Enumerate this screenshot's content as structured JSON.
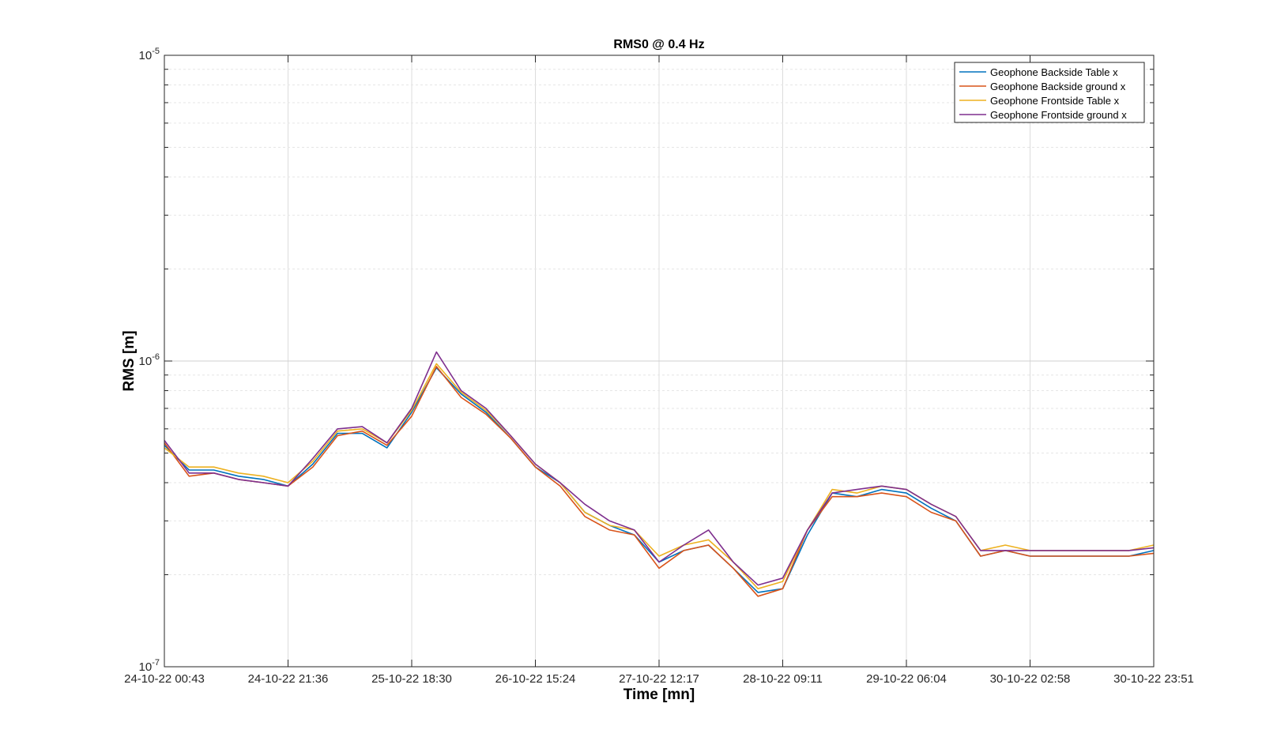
{
  "chart_data": {
    "type": "line",
    "title": "RMS0 @ 0.4 Hz",
    "xlabel": "Time [mn]",
    "ylabel": "RMS [m]",
    "yscale": "log",
    "ylim": [
      1e-07,
      1e-05
    ],
    "grid": true,
    "legend_position": "top-right",
    "x_tick_labels": [
      "24-10-22 00:43",
      "24-10-22 21:36",
      "25-10-22 18:30",
      "26-10-22 15:24",
      "27-10-22 12:17",
      "28-10-22 09:11",
      "29-10-22 06:04",
      "30-10-22 02:58",
      "30-10-22 23:51"
    ],
    "y_ticks": [
      {
        "value": 1e-07,
        "base": "10",
        "exp": "-7"
      },
      {
        "value": 1e-06,
        "base": "10",
        "exp": "-6"
      },
      {
        "value": 1e-05,
        "base": "10",
        "exp": "-5"
      }
    ],
    "x_unit_note": "x values are hours since 24-10-22 00:43",
    "series": [
      {
        "name": "Geophone Backside Table x",
        "color": "#0072BD",
        "x": [
          0,
          4,
          8,
          12,
          16,
          20,
          24,
          28,
          32,
          36,
          40,
          44,
          48,
          52,
          56,
          60,
          64,
          68,
          72,
          76,
          80,
          84,
          88,
          92,
          96,
          100,
          104,
          108,
          112,
          116,
          120,
          124,
          128,
          132,
          136,
          140,
          144,
          148,
          152,
          156,
          160
        ],
        "y": [
          5.3e-07,
          4.4e-07,
          4.4e-07,
          4.2e-07,
          4.1e-07,
          3.9e-07,
          4.6e-07,
          5.8e-07,
          5.8e-07,
          5.2e-07,
          6.8e-07,
          9.5e-07,
          7.8e-07,
          6.8e-07,
          5.6e-07,
          4.5e-07,
          4e-07,
          3.2e-07,
          2.9e-07,
          2.7e-07,
          2.2e-07,
          2.4e-07,
          2.5e-07,
          2.1e-07,
          1.75e-07,
          1.8e-07,
          2.7e-07,
          3.7e-07,
          3.6e-07,
          3.8e-07,
          3.7e-07,
          3.3e-07,
          3e-07,
          2.3e-07,
          2.4e-07,
          2.3e-07,
          2.3e-07,
          2.3e-07,
          2.3e-07,
          2.3e-07,
          2.4e-07
        ]
      },
      {
        "name": "Geophone Backside ground x",
        "color": "#D95319",
        "x": [
          0,
          4,
          8,
          12,
          16,
          20,
          24,
          28,
          32,
          36,
          40,
          44,
          48,
          52,
          56,
          60,
          64,
          68,
          72,
          76,
          80,
          84,
          88,
          92,
          96,
          100,
          104,
          108,
          112,
          116,
          120,
          124,
          128,
          132,
          136,
          140,
          144,
          148,
          152,
          156,
          160
        ],
        "y": [
          5.4e-07,
          4.2e-07,
          4.3e-07,
          4.1e-07,
          4e-07,
          3.9e-07,
          4.5e-07,
          5.7e-07,
          5.9e-07,
          5.3e-07,
          6.6e-07,
          9.6e-07,
          7.6e-07,
          6.7e-07,
          5.6e-07,
          4.5e-07,
          3.9e-07,
          3.1e-07,
          2.8e-07,
          2.7e-07,
          2.1e-07,
          2.4e-07,
          2.5e-07,
          2.1e-07,
          1.7e-07,
          1.8e-07,
          2.8e-07,
          3.6e-07,
          3.6e-07,
          3.7e-07,
          3.6e-07,
          3.2e-07,
          3e-07,
          2.3e-07,
          2.4e-07,
          2.3e-07,
          2.3e-07,
          2.3e-07,
          2.3e-07,
          2.3e-07,
          2.35e-07
        ]
      },
      {
        "name": "Geophone Frontside Table x",
        "color": "#EDB120",
        "x": [
          0,
          4,
          8,
          12,
          16,
          20,
          24,
          28,
          32,
          36,
          40,
          44,
          48,
          52,
          56,
          60,
          64,
          68,
          72,
          76,
          80,
          84,
          88,
          92,
          96,
          100,
          104,
          108,
          112,
          116,
          120,
          124,
          128,
          132,
          136,
          140,
          144,
          148,
          152,
          156,
          160
        ],
        "y": [
          5.2e-07,
          4.5e-07,
          4.5e-07,
          4.3e-07,
          4.2e-07,
          4e-07,
          4.7e-07,
          5.9e-07,
          6e-07,
          5.4e-07,
          6.9e-07,
          9.8e-07,
          7.9e-07,
          6.9e-07,
          5.7e-07,
          4.6e-07,
          4e-07,
          3.2e-07,
          2.9e-07,
          2.8e-07,
          2.3e-07,
          2.5e-07,
          2.6e-07,
          2.2e-07,
          1.8e-07,
          1.9e-07,
          2.8e-07,
          3.8e-07,
          3.7e-07,
          3.9e-07,
          3.8e-07,
          3.4e-07,
          3.1e-07,
          2.4e-07,
          2.5e-07,
          2.4e-07,
          2.4e-07,
          2.4e-07,
          2.4e-07,
          2.4e-07,
          2.5e-07
        ]
      },
      {
        "name": "Geophone Frontside ground x",
        "color": "#7E2F8E",
        "x": [
          0,
          4,
          8,
          12,
          16,
          20,
          24,
          28,
          32,
          36,
          40,
          44,
          48,
          52,
          56,
          60,
          64,
          68,
          72,
          76,
          80,
          84,
          88,
          92,
          96,
          100,
          104,
          108,
          112,
          116,
          120,
          124,
          128,
          132,
          136,
          140,
          144,
          148,
          152,
          156,
          160
        ],
        "y": [
          5.5e-07,
          4.3e-07,
          4.3e-07,
          4.1e-07,
          4e-07,
          3.9e-07,
          4.8e-07,
          6e-07,
          6.1e-07,
          5.4e-07,
          7e-07,
          1.07e-06,
          8e-07,
          7e-07,
          5.7e-07,
          4.6e-07,
          4e-07,
          3.4e-07,
          3e-07,
          2.8e-07,
          2.2e-07,
          2.5e-07,
          2.8e-07,
          2.2e-07,
          1.85e-07,
          1.95e-07,
          2.8e-07,
          3.7e-07,
          3.8e-07,
          3.9e-07,
          3.8e-07,
          3.4e-07,
          3.1e-07,
          2.4e-07,
          2.4e-07,
          2.4e-07,
          2.4e-07,
          2.4e-07,
          2.4e-07,
          2.4e-07,
          2.45e-07
        ]
      }
    ]
  }
}
